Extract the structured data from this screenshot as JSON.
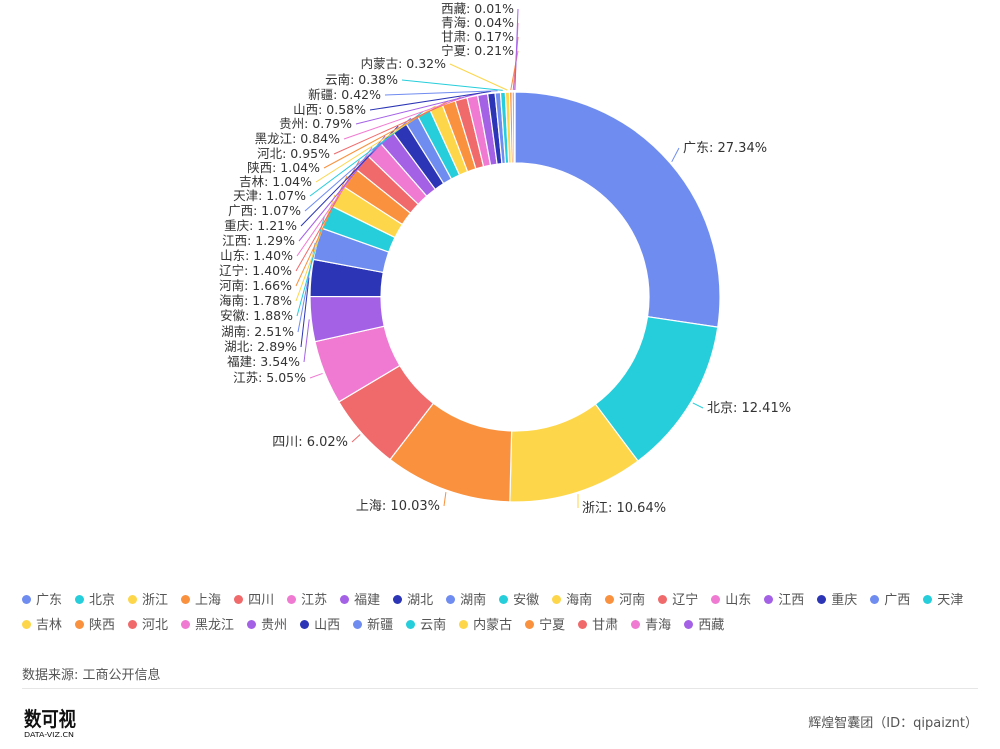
{
  "chart_data": {
    "type": "pie",
    "variant": "donut",
    "slices": [
      {
        "label": "广东",
        "value": 27.34,
        "text": "广东: 27.34%",
        "color": "#6f8cf0"
      },
      {
        "label": "北京",
        "value": 12.41,
        "text": "北京: 12.41%",
        "color": "#26cedb"
      },
      {
        "label": "浙江",
        "value": 10.64,
        "text": "浙江: 10.64%",
        "color": "#fdd64a"
      },
      {
        "label": "上海",
        "value": 10.03,
        "text": "上海: 10.03%",
        "color": "#f9913e"
      },
      {
        "label": "四川",
        "value": 6.02,
        "text": "四川: 6.02%",
        "color": "#f06a6b"
      },
      {
        "label": "江苏",
        "value": 5.05,
        "text": "江苏: 5.05%",
        "color": "#f07ad2"
      },
      {
        "label": "福建",
        "value": 3.54,
        "text": "福建: 3.54%",
        "color": "#a461e6"
      },
      {
        "label": "湖北",
        "value": 2.89,
        "text": "湖北: 2.89%",
        "color": "#2b35b5"
      },
      {
        "label": "湖南",
        "value": 2.51,
        "text": "湖南: 2.51%",
        "color": "#6f8cf0"
      },
      {
        "label": "安徽",
        "value": 1.88,
        "text": "安徽: 1.88%",
        "color": "#26cedb"
      },
      {
        "label": "海南",
        "value": 1.78,
        "text": "海南: 1.78%",
        "color": "#fdd64a"
      },
      {
        "label": "河南",
        "value": 1.66,
        "text": "河南: 1.66%",
        "color": "#f9913e"
      },
      {
        "label": "辽宁",
        "value": 1.4,
        "text": "辽宁: 1.40%",
        "color": "#f06a6b"
      },
      {
        "label": "山东",
        "value": 1.4,
        "text": "山东: 1.40%",
        "color": "#f07ad2"
      },
      {
        "label": "江西",
        "value": 1.29,
        "text": "江西: 1.29%",
        "color": "#a461e6"
      },
      {
        "label": "重庆",
        "value": 1.21,
        "text": "重庆: 1.21%",
        "color": "#2b35b5"
      },
      {
        "label": "广西",
        "value": 1.07,
        "text": "广西: 1.07%",
        "color": "#6f8cf0"
      },
      {
        "label": "天津",
        "value": 1.07,
        "text": "天津: 1.07%",
        "color": "#26cedb"
      },
      {
        "label": "吉林",
        "value": 1.04,
        "text": "吉林: 1.04%",
        "color": "#fdd64a"
      },
      {
        "label": "陕西",
        "value": 1.04,
        "text": "陕西: 1.04%",
        "color": "#f9913e"
      },
      {
        "label": "河北",
        "value": 0.95,
        "text": "河北: 0.95%",
        "color": "#f06a6b"
      },
      {
        "label": "黑龙江",
        "value": 0.84,
        "text": "黑龙江: 0.84%",
        "color": "#f07ad2"
      },
      {
        "label": "贵州",
        "value": 0.79,
        "text": "贵州: 0.79%",
        "color": "#a461e6"
      },
      {
        "label": "山西",
        "value": 0.58,
        "text": "山西: 0.58%",
        "color": "#2b35b5"
      },
      {
        "label": "新疆",
        "value": 0.42,
        "text": "新疆: 0.42%",
        "color": "#6f8cf0"
      },
      {
        "label": "云南",
        "value": 0.38,
        "text": "云南: 0.38%",
        "color": "#26cedb"
      },
      {
        "label": "内蒙古",
        "value": 0.32,
        "text": "内蒙古: 0.32%",
        "color": "#fdd64a"
      },
      {
        "label": "宁夏",
        "value": 0.21,
        "text": "宁夏: 0.21%",
        "color": "#f9913e"
      },
      {
        "label": "甘肃",
        "value": 0.17,
        "text": "甘肃: 0.17%",
        "color": "#f06a6b"
      },
      {
        "label": "青海",
        "value": 0.04,
        "text": "青海: 0.04%",
        "color": "#f07ad2"
      },
      {
        "label": "西藏",
        "value": 0.01,
        "text": "西藏: 0.01%",
        "color": "#a461e6"
      }
    ],
    "legend_position": "bottom"
  },
  "footer": {
    "source": "数据来源: 工商公开信息",
    "credit": "辉煌智囊团（ID：qipaiznt）",
    "logo_text": "数可视",
    "logo_subtext": "DATA-VIZ.CN"
  }
}
